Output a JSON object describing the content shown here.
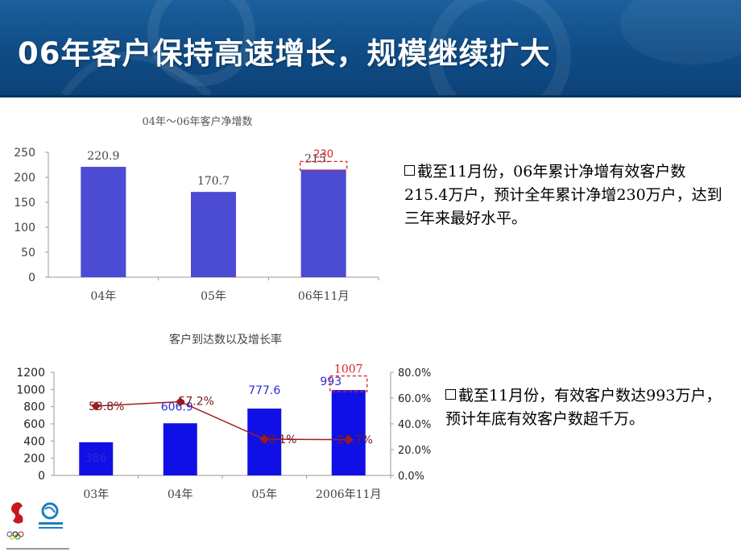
{
  "slide": {
    "title": "06年客户保持高速增长，规模继续扩大",
    "note1": "截至11月份，06年累计净增有效客户数215.4万户，预计全年累计净增230万户，达到三年来最好水平。",
    "note2": "截至11月份，有效客户数达993万户，预计年底有效客户数超千万。",
    "colors": {
      "banner": "#124f8a",
      "bar1": "#4b4bd3",
      "bar2": "#1010e6",
      "line": "#a01e1e",
      "highlight": "#e02020"
    }
  },
  "chart_data": [
    {
      "type": "bar",
      "title": "04年～06年客户净增数",
      "categories": [
        "04年",
        "05年",
        "06年11月"
      ],
      "values": [
        220.9,
        170.7,
        215.4
      ],
      "value_labels": [
        "220.9",
        "170.7",
        "215."
      ],
      "ylim": [
        0,
        250
      ],
      "yticks": [
        "0",
        "50",
        "100",
        "150",
        "200",
        "250"
      ],
      "forecast": {
        "category": "06年11月",
        "value": 230,
        "label": "230"
      },
      "grid": false
    },
    {
      "type": "bar+line",
      "title": "客户到达数以及增长率",
      "categories": [
        "03年",
        "04年",
        "05年",
        "2006年11月"
      ],
      "series": [
        {
          "name": "客户到达数",
          "type": "bar",
          "axis": "left",
          "values": [
            386,
            606.9,
            777.6,
            993
          ],
          "labels": [
            "386",
            "606.9",
            "777.6",
            "993"
          ]
        },
        {
          "name": "增长率",
          "type": "line",
          "axis": "right",
          "values": [
            53.8,
            57.2,
            28.1,
            27.7
          ],
          "labels": [
            "53.8%",
            "57.2%",
            "28.1%",
            "27.7%"
          ]
        }
      ],
      "forecast": {
        "category": "2006年11月",
        "value": 1007,
        "label": "1007"
      },
      "ylim_left": [
        0,
        1200
      ],
      "yticks_left": [
        "0",
        "200",
        "400",
        "600",
        "800",
        "1000",
        "1200"
      ],
      "ylim_right": [
        0,
        80
      ],
      "yticks_right": [
        "0.0%",
        "20.0%",
        "40.0%",
        "60.0%",
        "80.0%"
      ]
    }
  ]
}
